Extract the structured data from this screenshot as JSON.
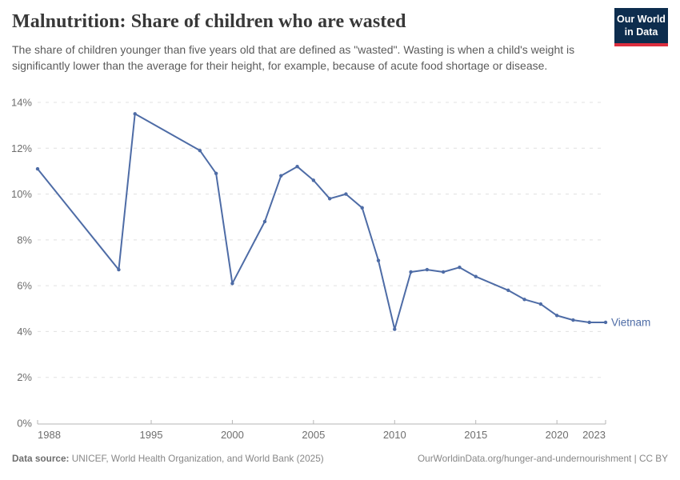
{
  "header": {
    "title": "Malnutrition: Share of children who are wasted",
    "subtitle": "The share of children younger than five years old that are defined as \"wasted\". Wasting is when a child's weight is significantly lower than the average for their height, for example, because of acute food shortage or disease."
  },
  "logo": {
    "line1": "Our World",
    "line2": "in Data",
    "bg_color": "#0d2d4e",
    "accent_color": "#dc2e3e"
  },
  "chart_data": {
    "type": "line",
    "title": "Malnutrition: Share of children who are wasted",
    "xlabel": "",
    "ylabel": "",
    "xlim": [
      1988,
      2023
    ],
    "ylim": [
      0,
      14
    ],
    "x_ticks": [
      1988,
      1995,
      2000,
      2005,
      2010,
      2015,
      2020,
      2023
    ],
    "y_ticks": [
      0,
      2,
      4,
      6,
      8,
      10,
      12,
      14
    ],
    "y_tick_suffix": "%",
    "grid": "horizontal-dashed",
    "legend": "end-of-line-label",
    "line_color": "#4e6ca6",
    "series": [
      {
        "name": "Vietnam",
        "points": [
          [
            1988,
            11.1
          ],
          [
            1993,
            6.7
          ],
          [
            1994,
            13.5
          ],
          [
            1998,
            11.9
          ],
          [
            1999,
            10.9
          ],
          [
            2000,
            6.1
          ],
          [
            2002,
            8.8
          ],
          [
            2003,
            10.8
          ],
          [
            2004,
            11.2
          ],
          [
            2005,
            10.6
          ],
          [
            2006,
            9.8
          ],
          [
            2007,
            10.0
          ],
          [
            2008,
            9.4
          ],
          [
            2009,
            7.1
          ],
          [
            2010,
            4.1
          ],
          [
            2011,
            6.6
          ],
          [
            2012,
            6.7
          ],
          [
            2013,
            6.6
          ],
          [
            2014,
            6.8
          ],
          [
            2015,
            6.4
          ],
          [
            2017,
            5.8
          ],
          [
            2018,
            5.4
          ],
          [
            2019,
            5.2
          ],
          [
            2020,
            4.7
          ],
          [
            2021,
            4.5
          ],
          [
            2022,
            4.4
          ],
          [
            2023,
            4.4
          ]
        ]
      }
    ]
  },
  "footer": {
    "source_label": "Data source:",
    "source_text": " UNICEF, World Health Organization, and World Bank (2025)",
    "link_text": "OurWorldinData.org/hunger-and-undernourishment | CC BY"
  }
}
